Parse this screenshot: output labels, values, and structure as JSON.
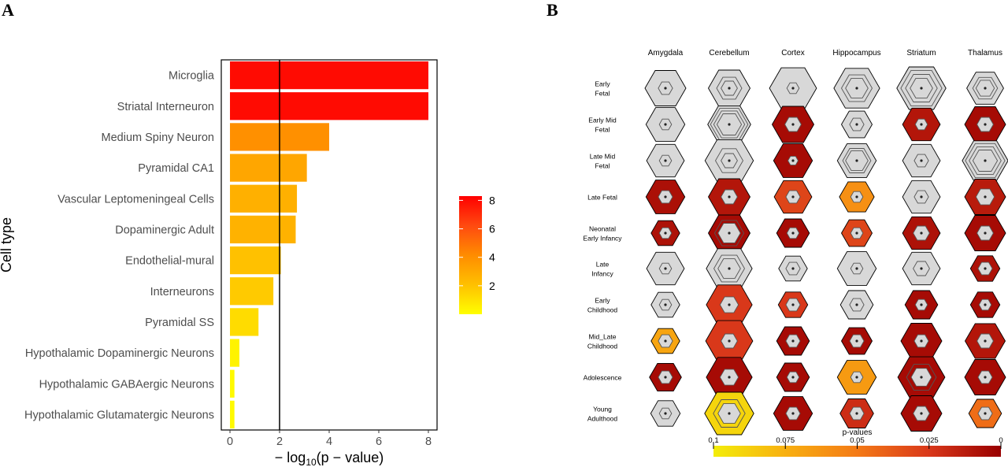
{
  "panel_labels": {
    "a": "A",
    "b": "B"
  },
  "chart_data": [
    {
      "type": "bar",
      "orientation": "horizontal",
      "ylabel": "Cell type",
      "xlabel_parts": {
        "prefix": "− log",
        "sub": "10",
        "suffix": "(p − value)"
      },
      "categories": [
        "Microglia",
        "Striatal Interneuron",
        "Medium Spiny Neuron",
        "Pyramidal CA1",
        "Vascular Leptomeningeal Cells",
        "Dopaminergic Adult",
        "Endothelial-mural",
        "Interneurons",
        "Pyramidal SS",
        "Hypothalamic Dopaminergic Neurons",
        "Hypothalamic GABAergic Neurons",
        "Hypothalamic Glutamatergic Neurons"
      ],
      "values": [
        8.0,
        8.0,
        4.0,
        3.1,
        2.7,
        2.65,
        2.05,
        1.75,
        1.15,
        0.38,
        0.18,
        0.18
      ],
      "xlim": [
        -0.35,
        8.35
      ],
      "xticks": [
        "0",
        "2",
        "4",
        "6",
        "8"
      ],
      "reference_line": 2,
      "colorbar": {
        "ticks": [
          "2",
          "4",
          "6",
          "8"
        ],
        "range": [
          0,
          8.3
        ],
        "colors": [
          "#ffff00",
          "#ffc000",
          "#ff8c00",
          "#ff4a10",
          "#ff0000"
        ]
      },
      "grid": false,
      "legend_position": "right"
    },
    {
      "type": "heatmap",
      "encoding": "hexagon fill color = p-value; nested hexagon outlines drawn inside each cell",
      "columns": [
        "Amygdala",
        "Cerebellum",
        "Cortex",
        "Hippocampus",
        "Striatum",
        "Thalamus"
      ],
      "rows": [
        [
          "Early",
          "Fetal"
        ],
        [
          "Early Mid",
          "Fetal"
        ],
        [
          "Late Mid",
          "Fetal"
        ],
        [
          "Late Fetal"
        ],
        [
          "Neonatal",
          "Early Infancy"
        ],
        [
          "Late",
          "Infancy"
        ],
        [
          "Early",
          "Childhood"
        ],
        [
          "Mid_Late",
          "Childhood"
        ],
        [
          "Adolescence"
        ],
        [
          "Young",
          "Adulthood"
        ]
      ],
      "cells": [
        [
          {
            "p": 1,
            "size": 1.0,
            "inner": 0.35,
            "rings": 1
          },
          {
            "p": 1,
            "size": 1.02,
            "inner": 0.4,
            "rings": 2
          },
          {
            "p": 1,
            "size": 1.15,
            "inner": 0.3,
            "rings": 1
          },
          {
            "p": 1,
            "size": 1.12,
            "inner": 0.55,
            "rings": 2
          },
          {
            "p": 1,
            "size": 1.2,
            "inner": 0.55,
            "rings": 3
          },
          {
            "p": 1,
            "size": 0.9,
            "inner": 0.45,
            "rings": 2
          }
        ],
        [
          {
            "p": 1,
            "size": 0.95,
            "inner": 0.3,
            "rings": 1
          },
          {
            "p": 1,
            "size": 1.05,
            "inner": 0.6,
            "rings": 3
          },
          {
            "p": 0.005,
            "size": 1.02,
            "inner": 0.4,
            "rings": 1
          },
          {
            "p": 1,
            "size": 0.75,
            "inner": 0.35,
            "rings": 1
          },
          {
            "p": 0.01,
            "size": 0.92,
            "inner": 0.3,
            "rings": 1
          },
          {
            "p": 0.005,
            "size": 1.0,
            "inner": 0.4,
            "rings": 1
          }
        ],
        [
          {
            "p": 1,
            "size": 0.92,
            "inner": 0.3,
            "rings": 1
          },
          {
            "p": 1,
            "size": 1.18,
            "inner": 0.4,
            "rings": 2
          },
          {
            "p": 0.005,
            "size": 0.95,
            "inner": 0.25,
            "rings": 1
          },
          {
            "p": 1,
            "size": 0.95,
            "inner": 0.55,
            "rings": 2
          },
          {
            "p": 1,
            "size": 0.92,
            "inner": 0.35,
            "rings": 1
          },
          {
            "p": 1,
            "size": 1.12,
            "inner": 0.6,
            "rings": 3
          }
        ],
        [
          {
            "p": 0.007,
            "size": 0.95,
            "inner": 0.35,
            "rings": 1
          },
          {
            "p": 0.01,
            "size": 1.02,
            "inner": 0.4,
            "rings": 1
          },
          {
            "p": 0.03,
            "size": 0.92,
            "inner": 0.35,
            "rings": 1
          },
          {
            "p": 0.06,
            "size": 0.85,
            "inner": 0.3,
            "rings": 1
          },
          {
            "p": 1,
            "size": 0.92,
            "inner": 0.35,
            "rings": 1
          },
          {
            "p": 0.012,
            "size": 1.0,
            "inner": 0.45,
            "rings": 1
          }
        ],
        [
          {
            "p": 0.008,
            "size": 0.7,
            "inner": 0.3,
            "rings": 1
          },
          {
            "p": 0.005,
            "size": 1.02,
            "inner": 0.55,
            "rings": 2
          },
          {
            "p": 0.005,
            "size": 0.8,
            "inner": 0.3,
            "rings": 1
          },
          {
            "p": 0.03,
            "size": 0.75,
            "inner": 0.3,
            "rings": 1
          },
          {
            "p": 0.008,
            "size": 0.92,
            "inner": 0.4,
            "rings": 1
          },
          {
            "p": 0.005,
            "size": 1.0,
            "inner": 0.4,
            "rings": 1
          }
        ],
        [
          {
            "p": 1,
            "size": 0.92,
            "inner": 0.3,
            "rings": 1
          },
          {
            "p": 1,
            "size": 1.12,
            "inner": 0.55,
            "rings": 2
          },
          {
            "p": 1,
            "size": 0.7,
            "inner": 0.35,
            "rings": 1
          },
          {
            "p": 1,
            "size": 0.95,
            "inner": 0.3,
            "rings": 1
          },
          {
            "p": 1,
            "size": 0.92,
            "inner": 0.4,
            "rings": 1
          },
          {
            "p": 0.008,
            "size": 0.72,
            "inner": 0.35,
            "rings": 1
          }
        ],
        [
          {
            "p": 1,
            "size": 0.7,
            "inner": 0.3,
            "rings": 1
          },
          {
            "p": 0.025,
            "size": 1.12,
            "inner": 0.45,
            "rings": 1
          },
          {
            "p": 0.025,
            "size": 0.72,
            "inner": 0.35,
            "rings": 1
          },
          {
            "p": 1,
            "size": 0.8,
            "inner": 0.35,
            "rings": 1
          },
          {
            "p": 0.005,
            "size": 0.8,
            "inner": 0.3,
            "rings": 1
          },
          {
            "p": 0.005,
            "size": 0.72,
            "inner": 0.3,
            "rings": 1
          }
        ],
        [
          {
            "p": 0.07,
            "size": 0.7,
            "inner": 0.35,
            "rings": 1
          },
          {
            "p": 0.025,
            "size": 1.15,
            "inner": 0.4,
            "rings": 1
          },
          {
            "p": 0.005,
            "size": 0.8,
            "inner": 0.35,
            "rings": 1
          },
          {
            "p": 0.005,
            "size": 0.75,
            "inner": 0.35,
            "rings": 1
          },
          {
            "p": 0.005,
            "size": 1.0,
            "inner": 0.35,
            "rings": 1
          },
          {
            "p": 0.01,
            "size": 0.98,
            "inner": 0.4,
            "rings": 1
          }
        ],
        [
          {
            "p": 0.005,
            "size": 0.78,
            "inner": 0.35,
            "rings": 1
          },
          {
            "p": 0.005,
            "size": 1.12,
            "inner": 0.45,
            "rings": 1
          },
          {
            "p": 0.005,
            "size": 0.8,
            "inner": 0.3,
            "rings": 1
          },
          {
            "p": 0.065,
            "size": 0.95,
            "inner": 0.3,
            "rings": 1
          },
          {
            "p": 0.005,
            "size": 1.15,
            "inner": 0.5,
            "rings": 2
          },
          {
            "p": 0.005,
            "size": 1.0,
            "inner": 0.35,
            "rings": 1
          }
        ],
        [
          {
            "p": 1,
            "size": 0.72,
            "inner": 0.3,
            "rings": 1
          },
          {
            "p": 0.09,
            "size": 1.2,
            "inner": 0.55,
            "rings": 2
          },
          {
            "p": 0.005,
            "size": 0.95,
            "inner": 0.35,
            "rings": 1
          },
          {
            "p": 0.02,
            "size": 0.82,
            "inner": 0.35,
            "rings": 1
          },
          {
            "p": 0.005,
            "size": 1.0,
            "inner": 0.4,
            "rings": 1
          },
          {
            "p": 0.045,
            "size": 0.8,
            "inner": 0.35,
            "rings": 1
          }
        ]
      ],
      "legend": {
        "title": "p-values",
        "ticks": [
          "0.1",
          "0.075",
          "0.05",
          "0.025",
          "0"
        ],
        "range": [
          0.1,
          0
        ],
        "colors": [
          "#f3ed0a",
          "#f8b010",
          "#f47a16",
          "#d9381a",
          "#990000"
        ]
      },
      "colors": {
        "not_significant": "#d8d8d8",
        "outline": "#000000",
        "inner_outline": "#555555"
      }
    }
  ]
}
